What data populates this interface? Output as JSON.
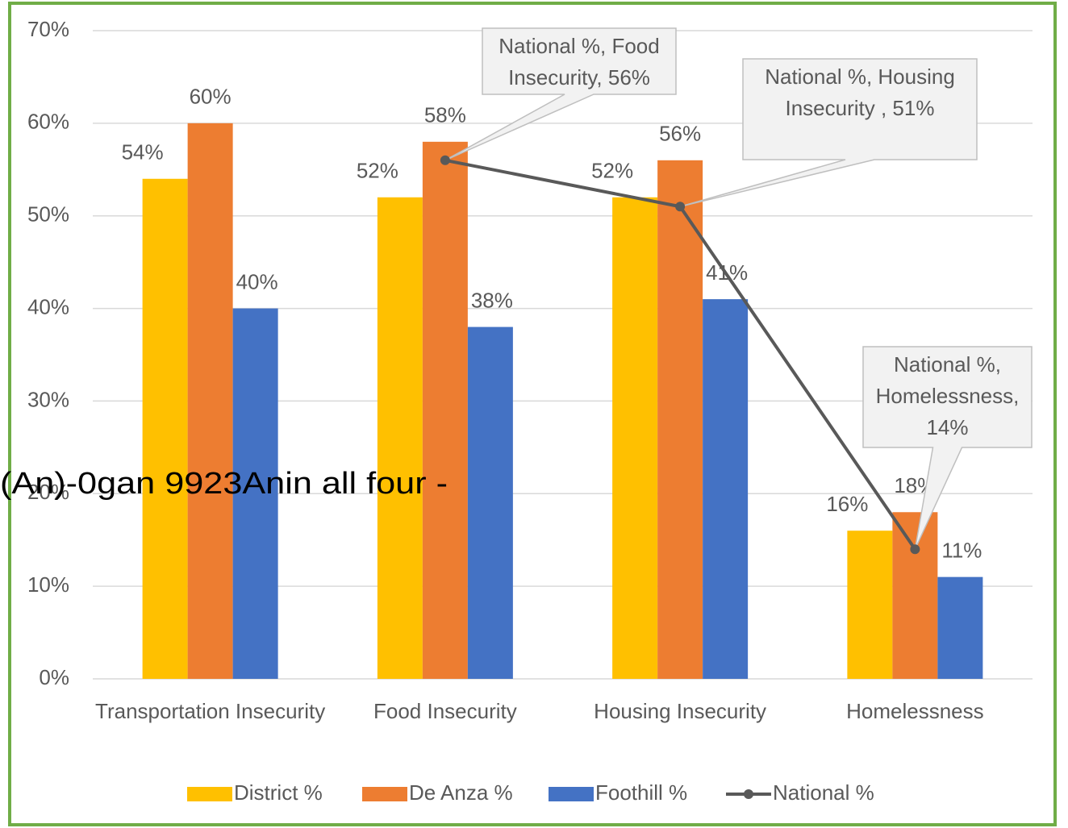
{
  "chart_data": {
    "type": "bar",
    "categories": [
      "Transportation Insecurity",
      "Food Insecurity",
      "Housing Insecurity",
      "Homelessness"
    ],
    "series": [
      {
        "name": "District %",
        "color": "#ffc000",
        "values": [
          54,
          52,
          52,
          16
        ],
        "value_labels": [
          "54%",
          "52%",
          "52%",
          "16%"
        ]
      },
      {
        "name": "De Anza %",
        "color": "#ed7d31",
        "values": [
          60,
          58,
          56,
          18
        ],
        "value_labels": [
          "60%",
          "58%",
          "56%",
          "18%"
        ]
      },
      {
        "name": "Foothill %",
        "color": "#4472c4",
        "values": [
          40,
          38,
          41,
          11
        ],
        "value_labels": [
          "40%",
          "38%",
          "41%",
          "11%"
        ]
      },
      {
        "name": "National %",
        "type": "line",
        "color": "#595959",
        "values": [
          null,
          56,
          51,
          14
        ],
        "value_labels": [
          null,
          "National %, Food Insecurity, 56%",
          "National %, Housing Insecurity , 51%",
          "National %, Homelessness, 14%"
        ]
      }
    ],
    "ylim": [
      0,
      70
    ],
    "yticks": [
      {
        "value": 0,
        "label": "0%"
      },
      {
        "value": 10,
        "label": "10%"
      },
      {
        "value": 20,
        "label": "20%"
      },
      {
        "value": 30,
        "label": "30%"
      },
      {
        "value": 40,
        "label": "40%"
      },
      {
        "value": 50,
        "label": "50%"
      },
      {
        "value": 60,
        "label": "60%"
      },
      {
        "value": 70,
        "label": "70%"
      }
    ],
    "grid": true,
    "legend": "bottom",
    "annotations": [
      "(An)-0gan 9923Anin all four -"
    ]
  }
}
